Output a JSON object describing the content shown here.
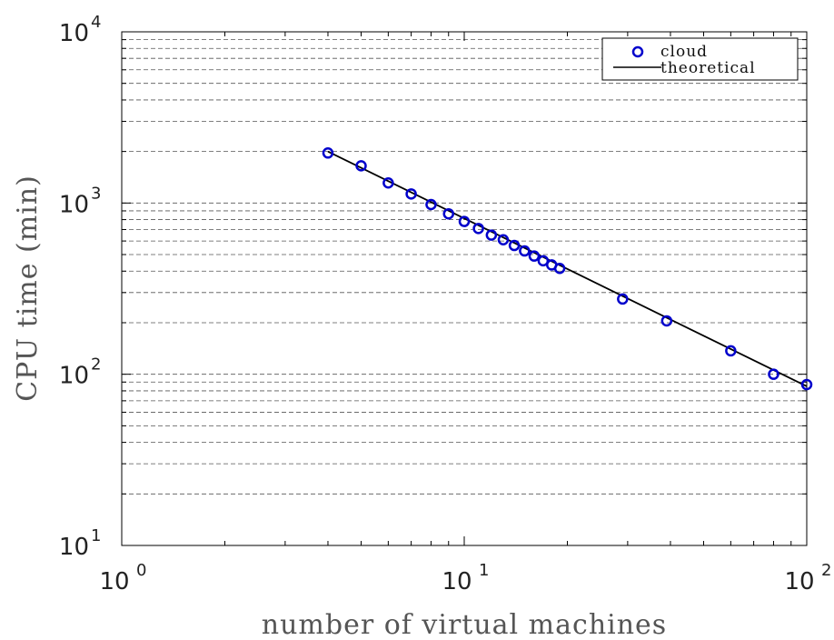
{
  "chart_data": {
    "type": "scatter",
    "xlabel": "number of virtual machines",
    "ylabel": "CPU time (min)",
    "xscale": "log",
    "yscale": "log",
    "xlim": [
      1,
      100
    ],
    "ylim": [
      10,
      10000
    ],
    "x_ticks": [
      {
        "base": "10",
        "exp": "0",
        "value": 1
      },
      {
        "base": "10",
        "exp": "1",
        "value": 10
      },
      {
        "base": "10",
        "exp": "2",
        "value": 100
      }
    ],
    "y_ticks": [
      {
        "base": "10",
        "exp": "1",
        "value": 10
      },
      {
        "base": "10",
        "exp": "2",
        "value": 100
      },
      {
        "base": "10",
        "exp": "3",
        "value": 1000
      },
      {
        "base": "10",
        "exp": "4",
        "value": 10000
      }
    ],
    "grid": "y-minor dashed",
    "legend_position": "top-right",
    "series": [
      {
        "name": "cloud",
        "style": "circle-markers",
        "color": "#0000cc",
        "x": [
          4,
          5,
          6,
          7,
          8,
          9,
          10,
          11,
          12,
          13,
          14,
          15,
          16,
          17,
          18,
          19,
          29,
          39,
          60,
          80,
          100
        ],
        "y": [
          1960,
          1650,
          1310,
          1130,
          980,
          865,
          780,
          710,
          650,
          610,
          565,
          525,
          490,
          460,
          435,
          415,
          275,
          205,
          137,
          100,
          87
        ]
      },
      {
        "name": "theoretical",
        "style": "line",
        "color": "#000000",
        "x": [
          4,
          100
        ],
        "y": [
          2000,
          85
        ]
      }
    ]
  }
}
